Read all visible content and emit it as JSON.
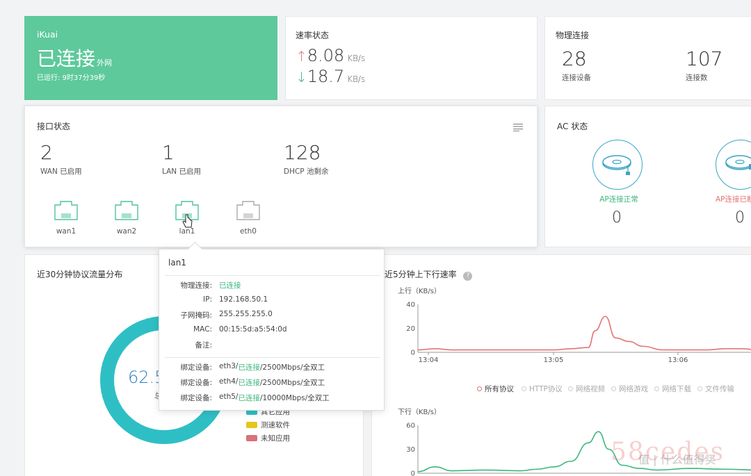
{
  "status_card": {
    "brand": "iKuai",
    "status": "已连接",
    "wan_label": "外网",
    "uptime": "已运行: 9时37分39秒"
  },
  "rate_card": {
    "title": "速率状态",
    "up_value": "8.08",
    "up_unit": "KB/s",
    "down_value": "18.7",
    "down_unit": "KB/s",
    "up_arrow": "↑",
    "down_arrow": "↓"
  },
  "phys_card": {
    "title": "物理连接",
    "devices_value": "28",
    "devices_label": "连接设备",
    "conns_value": "107",
    "conns_label": "连接数"
  },
  "iface_card": {
    "title": "接口状态",
    "wan_value": "2",
    "wan_label": "WAN 已启用",
    "lan_value": "1",
    "lan_label": "LAN 已启用",
    "dhcp_value": "128",
    "dhcp_label": "DHCP 池剩余",
    "ports": [
      {
        "name": "wan1",
        "color": "#4fc39a"
      },
      {
        "name": "wan2",
        "color": "#4fc39a"
      },
      {
        "name": "lan1",
        "color": "#4fc39a"
      },
      {
        "name": "eth0",
        "color": "#aaaaaa"
      }
    ],
    "menu_icon": "list-icon"
  },
  "ac_card": {
    "title": "AC 状态",
    "ap_ok_label": "AP连接正常",
    "ap_ok_value": "0",
    "ap_bad_label": "AP连接已断",
    "ap_bad_value": "0"
  },
  "tooltip": {
    "title": "lan1",
    "rows": [
      {
        "key": "物理连接:",
        "value": "已连接"
      },
      {
        "key": "IP:",
        "value": "192.168.50.1"
      },
      {
        "key": "子网掩码:",
        "value": "255.255.255.0"
      },
      {
        "key": "MAC:",
        "value": "00:15:5d:a5:54:0d"
      },
      {
        "key": "备注:",
        "value": ""
      }
    ],
    "bindings": [
      {
        "key": "绑定设备:",
        "prefix": "eth3/",
        "status": "已连接",
        "suffix": "/2500Mbps/全双工"
      },
      {
        "key": "绑定设备:",
        "prefix": "eth4/",
        "status": "已连接",
        "suffix": "/2500Mbps/全双工"
      },
      {
        "key": "绑定设备:",
        "prefix": "eth5/",
        "status": "已连接",
        "suffix": "/10000Mbps/全双工"
      }
    ]
  },
  "protocol_card": {
    "title": "近30分钟协议流量分布",
    "center_value": "62.5",
    "center_label": "总",
    "legend": [
      {
        "name": "其它应用",
        "color": "#2ebfc4"
      },
      {
        "name": "测速软件",
        "color": "#e6c619"
      },
      {
        "name": "未知应用",
        "color": "#d8727b"
      }
    ]
  },
  "rate_chart_card": {
    "title": "近5分钟上下行速率",
    "help_icon": "question-icon",
    "protocols": [
      "所有协议",
      "HTTP协议",
      "网络视频",
      "网络游戏",
      "网络下载",
      "文件传输"
    ]
  },
  "chart_data": [
    {
      "type": "line",
      "ylabel": "上行（KB/s）",
      "ylim": [
        0,
        40
      ],
      "yticks": [
        0,
        20,
        40
      ],
      "xticks": [
        "13:04",
        "13:05",
        "13:06"
      ],
      "series": [
        {
          "color": "#e57373",
          "x": [
            0,
            0.05,
            0.1,
            0.2,
            0.3,
            0.4,
            0.45,
            0.5,
            0.52,
            0.55,
            0.58,
            0.62,
            0.66,
            0.72,
            0.8,
            0.85,
            0.9,
            0.95,
            1.0
          ],
          "values": [
            2,
            3,
            2,
            2,
            2,
            2,
            3,
            4,
            18,
            30,
            12,
            9,
            5,
            2,
            2,
            2,
            3,
            3,
            2
          ]
        }
      ]
    },
    {
      "type": "line",
      "ylabel": "下行（KB/s）",
      "ylim": [
        0,
        60
      ],
      "yticks": [
        0,
        30,
        60
      ],
      "series": [
        {
          "color": "#3bb77e",
          "x": [
            0,
            0.05,
            0.1,
            0.2,
            0.3,
            0.35,
            0.4,
            0.45,
            0.5,
            0.53,
            0.56,
            0.6,
            0.65,
            0.7,
            0.8,
            0.9,
            1.0
          ],
          "values": [
            2,
            8,
            3,
            4,
            3,
            5,
            8,
            15,
            38,
            52,
            30,
            10,
            6,
            4,
            6,
            5,
            4
          ]
        }
      ]
    }
  ],
  "watermark": {
    "text": "58cedes",
    "sub": "值 | 什么值得买"
  }
}
